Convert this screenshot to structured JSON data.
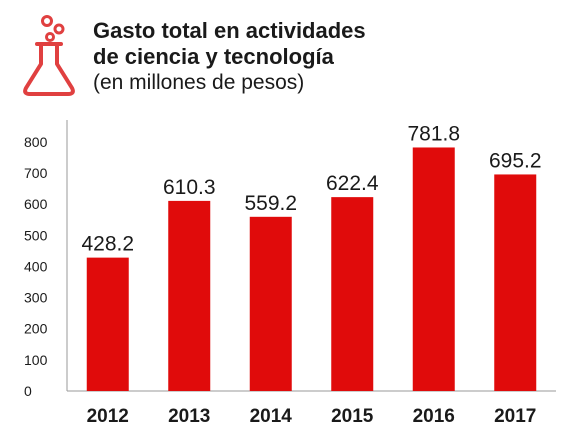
{
  "header": {
    "icon": "flask-icon",
    "title_line1": "Gasto total en actividades",
    "title_line2": "de ciencia y tecnología",
    "subtitle": "(en millones de pesos)"
  },
  "colors": {
    "bar": "#e00b0b",
    "icon": "#e04040",
    "axis": "#9a9a9a"
  },
  "chart_data": {
    "type": "bar",
    "title": "Gasto total en actividades de ciencia y tecnología",
    "subtitle": "(en millones de pesos)",
    "categories": [
      "2012",
      "2013",
      "2014",
      "2015",
      "2016",
      "2017"
    ],
    "values": [
      428.2,
      610.3,
      559.2,
      622.4,
      781.8,
      695.2
    ],
    "value_labels": [
      "428.2",
      "610.3",
      "559.2",
      "622.4",
      "781.8",
      "695.2"
    ],
    "yticks": [
      0,
      100,
      200,
      300,
      400,
      500,
      600,
      700,
      800
    ],
    "ytick_labels": [
      "0",
      "100",
      "200",
      "300",
      "400",
      "500",
      "600",
      "700",
      "800"
    ],
    "ylim": [
      0,
      870
    ],
    "xlabel": "",
    "ylabel": "",
    "grid": false,
    "legend": "none"
  }
}
